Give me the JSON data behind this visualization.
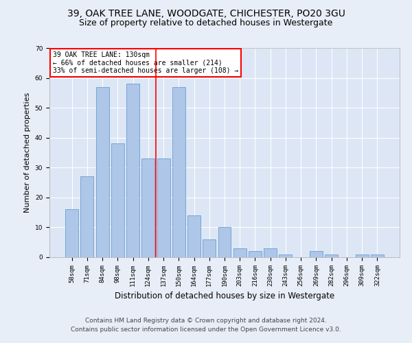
{
  "title1": "39, OAK TREE LANE, WOODGATE, CHICHESTER, PO20 3GU",
  "title2": "Size of property relative to detached houses in Westergate",
  "xlabel": "Distribution of detached houses by size in Westergate",
  "ylabel": "Number of detached properties",
  "categories": [
    "58sqm",
    "71sqm",
    "84sqm",
    "98sqm",
    "111sqm",
    "124sqm",
    "137sqm",
    "150sqm",
    "164sqm",
    "177sqm",
    "190sqm",
    "203sqm",
    "216sqm",
    "230sqm",
    "243sqm",
    "256sqm",
    "269sqm",
    "282sqm",
    "296sqm",
    "309sqm",
    "322sqm"
  ],
  "values": [
    16,
    27,
    57,
    38,
    58,
    33,
    33,
    57,
    14,
    6,
    10,
    3,
    2,
    3,
    1,
    0,
    2,
    1,
    0,
    1,
    1
  ],
  "bar_color": "#aec6e8",
  "bar_edge_color": "#6a9fd0",
  "vline_x": 5.5,
  "annotation_text": "39 OAK TREE LANE: 130sqm\n← 66% of detached houses are smaller (214)\n33% of semi-detached houses are larger (108) →",
  "annotation_box_color": "white",
  "annotation_box_edge_color": "red",
  "ylim": [
    0,
    70
  ],
  "yticks": [
    0,
    10,
    20,
    30,
    40,
    50,
    60,
    70
  ],
  "footer1": "Contains HM Land Registry data © Crown copyright and database right 2024.",
  "footer2": "Contains public sector information licensed under the Open Government Licence v3.0.",
  "bg_color": "#e8eef7",
  "plot_bg_color": "#dce6f5",
  "title1_fontsize": 10,
  "title2_fontsize": 9,
  "xlabel_fontsize": 8.5,
  "ylabel_fontsize": 8,
  "tick_fontsize": 6.5,
  "footer_fontsize": 6.5
}
